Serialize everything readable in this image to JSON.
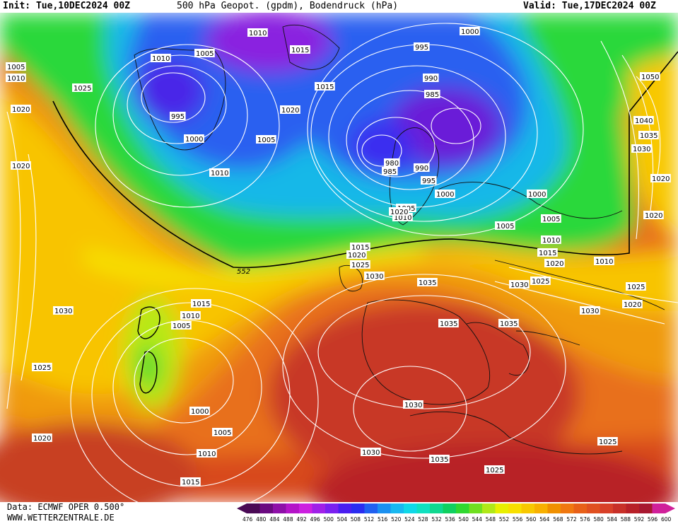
{
  "header": {
    "init": "Init: Tue,10DEC2024 00Z",
    "title": "500 hPa Geopot. (gpdm), Bodendruck (hPa)",
    "valid": "Valid: Tue,17DEC2024 00Z"
  },
  "footer": {
    "source": "Data: ECMWF OPER 0.500°",
    "website": "WWW.WETTERZENTRALE.DE"
  },
  "colorbar": {
    "ticks": [
      "476",
      "480",
      "484",
      "488",
      "492",
      "496",
      "500",
      "504",
      "508",
      "512",
      "516",
      "520",
      "524",
      "528",
      "532",
      "536",
      "540",
      "544",
      "548",
      "552",
      "556",
      "560",
      "564",
      "568",
      "572",
      "576",
      "580",
      "584",
      "588",
      "592",
      "596",
      "600"
    ],
    "colors": [
      "#4a0a55",
      "#6a0a80",
      "#8e0fa8",
      "#b414c8",
      "#cc20e0",
      "#a020e8",
      "#7a20f0",
      "#4a1ef0",
      "#2a2cf0",
      "#2060f0",
      "#1a90f0",
      "#18b8f0",
      "#10d8e8",
      "#10e0c0",
      "#10d890",
      "#10d060",
      "#30d830",
      "#70e020",
      "#b0e818",
      "#e8f000",
      "#f8e000",
      "#f8c800",
      "#f8b000",
      "#f09000",
      "#f07810",
      "#e86018",
      "#e05020",
      "#d84028",
      "#c83028",
      "#b82028",
      "#a81830",
      "#d0209a"
    ]
  },
  "map_labels": {
    "hgt_552": "552",
    "pressure": [
      "1010",
      "1005",
      "1010",
      "1015",
      "1025",
      "1010",
      "1005",
      "995",
      "1000",
      "1020",
      "1015",
      "1005",
      "1010",
      "995",
      "1000",
      "990",
      "985",
      "980",
      "985",
      "990",
      "995",
      "1000",
      "1000",
      "1005",
      "1010",
      "1015",
      "1020",
      "1005",
      "1010",
      "1015",
      "1020",
      "1025",
      "1030",
      "1035",
      "1035",
      "1035",
      "1030",
      "1025",
      "1030",
      "1020",
      "1025",
      "1050",
      "1040",
      "1035",
      "1030",
      "1020",
      "1020",
      "1030",
      "1025",
      "1015",
      "1010",
      "1005",
      "1000",
      "1005",
      "1010",
      "1015",
      "1020",
      "1025",
      "1030",
      "1035",
      "1030",
      "1025",
      "1020",
      "1020",
      "1005",
      "1010",
      "1020"
    ]
  }
}
